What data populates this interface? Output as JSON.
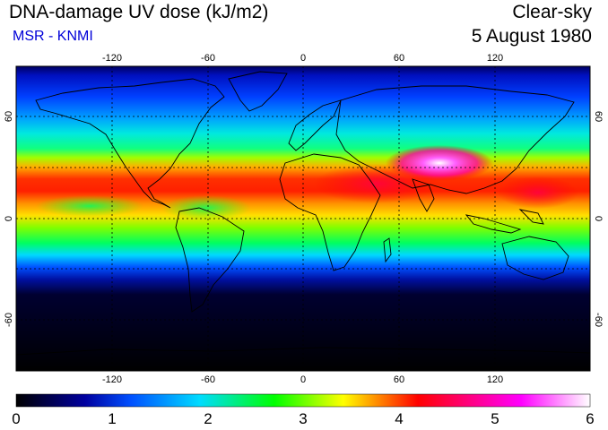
{
  "header": {
    "title": "DNA-damage UV dose (kJ/m2)",
    "subtitle": "MSR - KNMI",
    "condition": "Clear-sky",
    "date": "5 August 1980"
  },
  "map": {
    "projection": "equirectangular",
    "lon_range": [
      -180,
      180
    ],
    "lat_range": [
      -90,
      90
    ],
    "gridlines": "dashed",
    "lon_ticks": [
      "-120",
      "-60",
      "0",
      "60",
      "120"
    ],
    "lat_ticks": [
      "60",
      "0",
      "-60"
    ],
    "coastlines": true,
    "field": "UV dose heat map (high values in northern subtropics, low in southern high latitudes)"
  },
  "colorbar": {
    "min": 0,
    "max": 6,
    "labels": [
      "0",
      "1",
      "2",
      "3",
      "4",
      "5",
      "6"
    ],
    "colors": [
      "#000000",
      "#0000a0",
      "#0050ff",
      "#00dcff",
      "#00ff00",
      "#ffff00",
      "#ff0000",
      "#ff00ff",
      "#ffffff"
    ]
  },
  "colors": {
    "subtitle": "#0000d8"
  }
}
